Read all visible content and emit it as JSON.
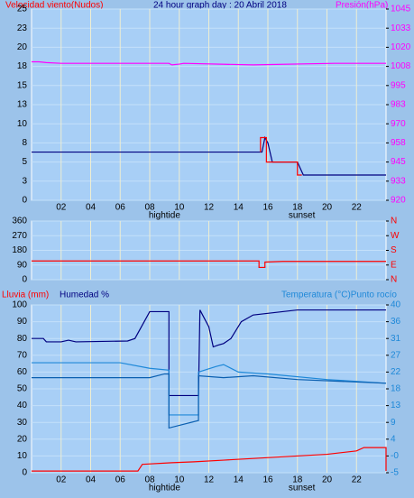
{
  "chart_data": [
    {
      "type": "line",
      "titles": [
        {
          "text": "Velocidad viento(Nudos)",
          "color": "#ff0000"
        },
        {
          "text": "24 hour graph day : 20 Abril 2018",
          "color": "#000080"
        },
        {
          "text": "Presión(hPa)",
          "color": "#ff00ff"
        }
      ],
      "xlim": [
        0,
        24
      ],
      "xticks": [
        {
          "value": 2,
          "label": "02"
        },
        {
          "value": 4,
          "label": "04"
        },
        {
          "value": 6,
          "label": "06"
        },
        {
          "value": 8,
          "label": "08"
        },
        10,
        12,
        14,
        16,
        18,
        20,
        22
      ],
      "annotations": [
        {
          "text": "hightide",
          "x": 9
        },
        {
          "text": "sunset",
          "x": 18.3
        }
      ],
      "ylim": [
        0,
        25
      ],
      "yticks": [
        0,
        {
          "value": 2.5,
          "label": "3"
        },
        5,
        {
          "value": 7.5,
          "label": "8"
        },
        10,
        {
          "value": 12.5,
          "label": "13"
        },
        15,
        {
          "value": 17.5,
          "label": "18"
        },
        20,
        {
          "value": 22.5,
          "label": "23"
        },
        25
      ],
      "y2lim": [
        920,
        1045
      ],
      "y2ticks": [
        920,
        {
          "value": 932.5,
          "label": "933"
        },
        945,
        {
          "value": 957.5,
          "label": "958"
        },
        970,
        {
          "value": 982.5,
          "label": "983"
        },
        995,
        {
          "value": 1007.5,
          "label": "1008"
        },
        1020,
        {
          "value": 1032.5,
          "label": "1033"
        },
        1045
      ],
      "grid": true,
      "series": [
        {
          "color": "#000080",
          "x": [
            0,
            15.6,
            15.8,
            16.0,
            16.3,
            18.0,
            18.4,
            24
          ],
          "values": [
            6.3,
            6.3,
            8.2,
            7.5,
            5,
            5,
            3.3,
            3.3
          ]
        },
        {
          "color": "#ff0000",
          "x": [
            15.5,
            15.5,
            15.9,
            15.9,
            18.0,
            18.0,
            18.3
          ],
          "values": [
            6.3,
            8.2,
            8.2,
            5,
            5,
            3.3,
            3.3
          ]
        },
        {
          "color": "#ff00ff",
          "axis": "y2",
          "x": [
            0,
            0.5,
            1,
            2,
            9.3,
            9.5,
            10,
            10.3,
            15,
            20.5,
            24
          ],
          "values": [
            1010.5,
            1010.5,
            1010,
            1009.5,
            1009.5,
            1008.5,
            1009,
            1009.5,
            1008.5,
            1009.5,
            1009.5
          ]
        }
      ]
    },
    {
      "type": "line",
      "xlim": [
        0,
        24
      ],
      "xticks": [
        {
          "value": 2,
          "label": "02"
        },
        {
          "value": 4,
          "label": "04"
        },
        {
          "value": 6,
          "label": "06"
        },
        {
          "value": 8,
          "label": "08"
        },
        10,
        12,
        14,
        16,
        18,
        20,
        22
      ],
      "ylim": [
        0,
        360
      ],
      "yticks": [
        0,
        90,
        180,
        270,
        360
      ],
      "y2lim": [
        0,
        360
      ],
      "y2ticks": [
        {
          "value": 0,
          "label": "N"
        },
        {
          "value": 90,
          "label": "E"
        },
        {
          "value": 180,
          "label": "S"
        },
        {
          "value": 270,
          "label": "W"
        },
        {
          "value": 360,
          "label": "N"
        }
      ],
      "grid": true,
      "series": [
        {
          "color": "#ff0000",
          "x": [
            0,
            15.4,
            15.4,
            15.8,
            15.8,
            17,
            24
          ],
          "values": [
            115,
            115,
            75,
            75,
            108,
            112,
            112
          ]
        }
      ]
    },
    {
      "type": "line",
      "titles": [
        {
          "text": "Lluvia (mm)",
          "color": "#ff0000"
        },
        {
          "text": "Humedad %",
          "color": "#000080"
        },
        {
          "text": "Temperatura (°C)Punto rocío",
          "color": "#1e88d8"
        }
      ],
      "xlim": [
        0,
        24
      ],
      "xticks": [
        {
          "value": 2,
          "label": "02"
        },
        {
          "value": 4,
          "label": "04"
        },
        {
          "value": 6,
          "label": "06"
        },
        {
          "value": 8,
          "label": "08"
        },
        10,
        12,
        14,
        16,
        18,
        20,
        22
      ],
      "annotations": [
        {
          "text": "hightide",
          "x": 9
        },
        {
          "text": "sunset",
          "x": 18.3
        }
      ],
      "ylim": [
        0,
        100
      ],
      "yticks": [
        0,
        10,
        20,
        30,
        40,
        50,
        60,
        70,
        80,
        90,
        100
      ],
      "y2lim": [
        -5,
        40
      ],
      "y2ticks": [
        -5,
        {
          "value": -0.5,
          "label": "-0"
        },
        4,
        {
          "value": 8.5,
          "label": "9"
        },
        13,
        {
          "value": 17.5,
          "label": "18"
        },
        22,
        {
          "value": 26.5,
          "label": "27"
        },
        31,
        {
          "value": 35.5,
          "label": "36"
        },
        40
      ],
      "grid": true,
      "series": [
        {
          "color": "#ff0000",
          "x": [
            0,
            7.2,
            7.5,
            9.5,
            11,
            13,
            15,
            17,
            20,
            22,
            22.5,
            24,
            24
          ],
          "values": [
            1,
            1,
            5,
            6,
            6.5,
            7.5,
            8.5,
            9.5,
            11,
            13,
            15,
            15,
            1
          ]
        },
        {
          "color": "#000080",
          "x": [
            0,
            0.8,
            1,
            2,
            2.5,
            3,
            6.5,
            7,
            7.5,
            8,
            9.3,
            9.3,
            11.3,
            11.4,
            12,
            12.3,
            12.6,
            13,
            13.5,
            14.2,
            15,
            16,
            17,
            18,
            24
          ],
          "values": [
            80,
            80,
            78,
            78,
            79,
            78,
            78.5,
            80,
            88,
            96,
            96,
            46,
            46,
            97,
            87,
            75,
            76,
            77,
            80,
            90,
            94,
            95,
            96,
            97,
            97
          ]
        },
        {
          "color": "#1e88d8",
          "axis": "y2",
          "x": [
            0,
            6,
            8,
            9.3,
            9.3,
            11.3,
            11.3,
            12.5,
            13,
            14,
            16,
            20,
            24
          ],
          "values": [
            24.5,
            24.5,
            23,
            22.5,
            10.5,
            10.5,
            22,
            23.5,
            24,
            22,
            21.5,
            20,
            19
          ]
        },
        {
          "color": "#0a5fb0",
          "axis": "y2",
          "x": [
            0,
            8,
            9,
            9.3,
            9.3,
            11.3,
            11.3,
            13,
            15,
            18,
            24
          ],
          "values": [
            20.5,
            20.5,
            21.5,
            21.5,
            7,
            9,
            21,
            20.5,
            21,
            20,
            19
          ]
        }
      ]
    }
  ]
}
